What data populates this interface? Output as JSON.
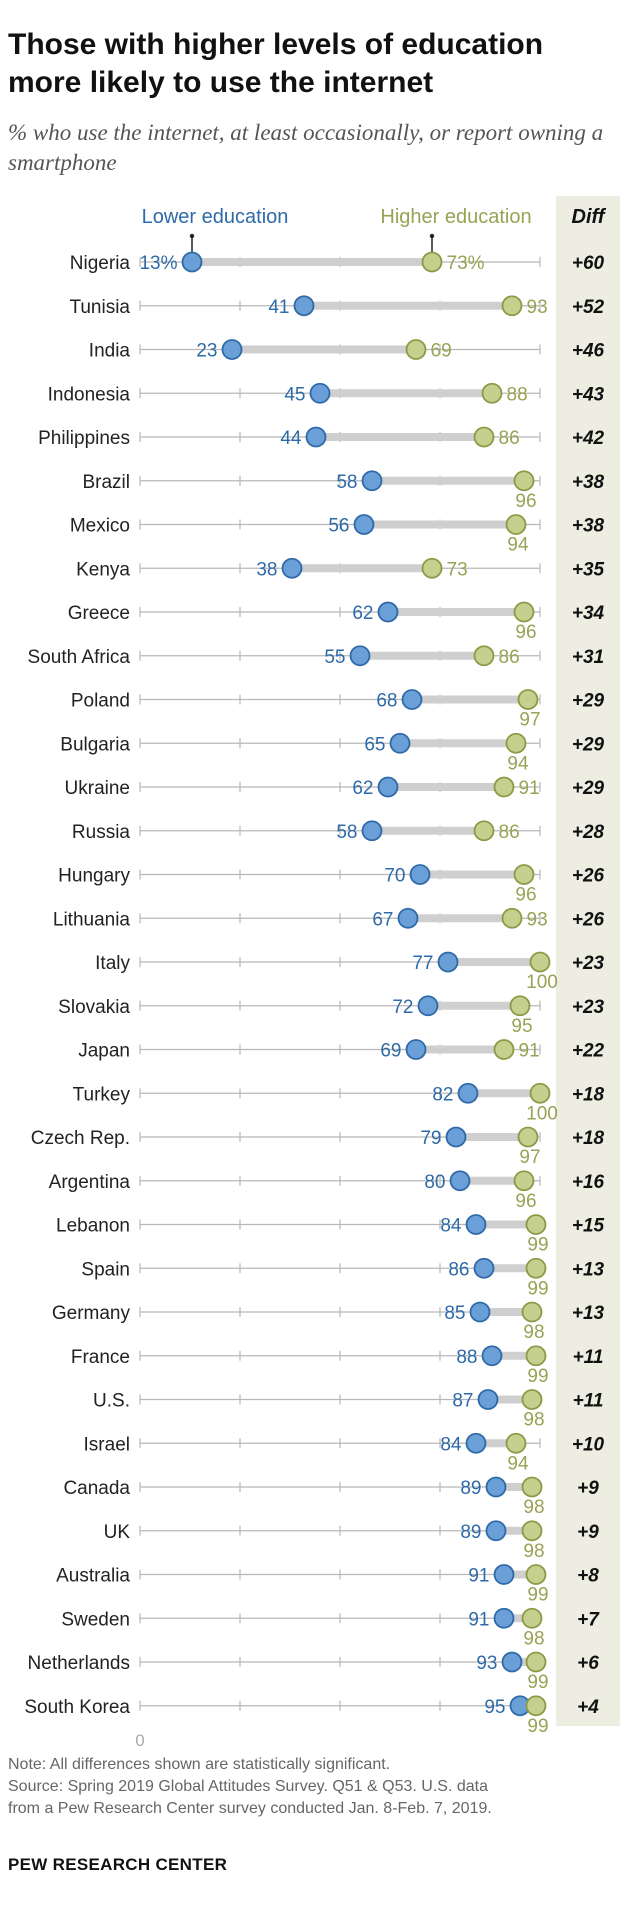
{
  "title": "Those with higher levels of education more likely to use the internet",
  "subtitle": "% who use the internet, at least occasionally, or report owning a smartphone",
  "legend": {
    "lower": "Lower education",
    "higher": "Higher education",
    "diff": "Diff"
  },
  "axis_zero_label": "0",
  "note": "Note: All differences shown are statistically significant.",
  "source_line1": "Source: Spring 2019 Global Attitudes Survey. Q51 & Q53. U.S. data",
  "source_line2": "from a Pew Research Center survey conducted Jan. 8-Feb. 7, 2019.",
  "footer": "PEW RESEARCH CENTER",
  "colors": {
    "lower": "#6a9fd8",
    "lower_stroke": "#2f6aa8",
    "lower_text": "#2f6aa8",
    "higher": "#c5cf8e",
    "higher_stroke": "#8c9a45",
    "higher_text": "#9aa255",
    "bar": "#cfcfcf",
    "axis": "#b8b8b8",
    "diff_band": "#eeede1"
  },
  "chart_data": {
    "type": "dot",
    "title": "Those with higher levels of education more likely to use the internet",
    "xlim": [
      0,
      100
    ],
    "series": [
      "Lower education",
      "Higher education"
    ],
    "rows": [
      {
        "country": "Nigeria",
        "lower": 13,
        "higher": 73,
        "lower_label": "13%",
        "higher_label": "73%",
        "diff": "+60"
      },
      {
        "country": "Tunisia",
        "lower": 41,
        "higher": 93,
        "lower_label": "41",
        "higher_label": "93",
        "diff": "+52"
      },
      {
        "country": "India",
        "lower": 23,
        "higher": 69,
        "lower_label": "23",
        "higher_label": "69",
        "diff": "+46"
      },
      {
        "country": "Indonesia",
        "lower": 45,
        "higher": 88,
        "lower_label": "45",
        "higher_label": "88",
        "diff": "+43"
      },
      {
        "country": "Philippines",
        "lower": 44,
        "higher": 86,
        "lower_label": "44",
        "higher_label": "86",
        "diff": "+42"
      },
      {
        "country": "Brazil",
        "lower": 58,
        "higher": 96,
        "lower_label": "58",
        "higher_label": "96",
        "diff": "+38"
      },
      {
        "country": "Mexico",
        "lower": 56,
        "higher": 94,
        "lower_label": "56",
        "higher_label": "94",
        "diff": "+38"
      },
      {
        "country": "Kenya",
        "lower": 38,
        "higher": 73,
        "lower_label": "38",
        "higher_label": "73",
        "diff": "+35"
      },
      {
        "country": "Greece",
        "lower": 62,
        "higher": 96,
        "lower_label": "62",
        "higher_label": "96",
        "diff": "+34"
      },
      {
        "country": "South Africa",
        "lower": 55,
        "higher": 86,
        "lower_label": "55",
        "higher_label": "86",
        "diff": "+31"
      },
      {
        "country": "Poland",
        "lower": 68,
        "higher": 97,
        "lower_label": "68",
        "higher_label": "97",
        "diff": "+29"
      },
      {
        "country": "Bulgaria",
        "lower": 65,
        "higher": 94,
        "lower_label": "65",
        "higher_label": "94",
        "diff": "+29"
      },
      {
        "country": "Ukraine",
        "lower": 62,
        "higher": 91,
        "lower_label": "62",
        "higher_label": "91",
        "diff": "+29"
      },
      {
        "country": "Russia",
        "lower": 58,
        "higher": 86,
        "lower_label": "58",
        "higher_label": "86",
        "diff": "+28"
      },
      {
        "country": "Hungary",
        "lower": 70,
        "higher": 96,
        "lower_label": "70",
        "higher_label": "96",
        "diff": "+26"
      },
      {
        "country": "Lithuania",
        "lower": 67,
        "higher": 93,
        "lower_label": "67",
        "higher_label": "93",
        "diff": "+26"
      },
      {
        "country": "Italy",
        "lower": 77,
        "higher": 100,
        "lower_label": "77",
        "higher_label": "100",
        "diff": "+23"
      },
      {
        "country": "Slovakia",
        "lower": 72,
        "higher": 95,
        "lower_label": "72",
        "higher_label": "95",
        "diff": "+23"
      },
      {
        "country": "Japan",
        "lower": 69,
        "higher": 91,
        "lower_label": "69",
        "higher_label": "91",
        "diff": "+22"
      },
      {
        "country": "Turkey",
        "lower": 82,
        "higher": 100,
        "lower_label": "82",
        "higher_label": "100",
        "diff": "+18"
      },
      {
        "country": "Czech Rep.",
        "lower": 79,
        "higher": 97,
        "lower_label": "79",
        "higher_label": "97",
        "diff": "+18"
      },
      {
        "country": "Argentina",
        "lower": 80,
        "higher": 96,
        "lower_label": "80",
        "higher_label": "96",
        "diff": "+16"
      },
      {
        "country": "Lebanon",
        "lower": 84,
        "higher": 99,
        "lower_label": "84",
        "higher_label": "99",
        "diff": "+15"
      },
      {
        "country": "Spain",
        "lower": 86,
        "higher": 99,
        "lower_label": "86",
        "higher_label": "99",
        "diff": "+13"
      },
      {
        "country": "Germany",
        "lower": 85,
        "higher": 98,
        "lower_label": "85",
        "higher_label": "98",
        "diff": "+13"
      },
      {
        "country": "France",
        "lower": 88,
        "higher": 99,
        "lower_label": "88",
        "higher_label": "99",
        "diff": "+11"
      },
      {
        "country": "U.S.",
        "lower": 87,
        "higher": 98,
        "lower_label": "87",
        "higher_label": "98",
        "diff": "+11"
      },
      {
        "country": "Israel",
        "lower": 84,
        "higher": 94,
        "lower_label": "84",
        "higher_label": "94",
        "diff": "+10"
      },
      {
        "country": "Canada",
        "lower": 89,
        "higher": 98,
        "lower_label": "89",
        "higher_label": "98",
        "diff": "+9"
      },
      {
        "country": "UK",
        "lower": 89,
        "higher": 98,
        "lower_label": "89",
        "higher_label": "98",
        "diff": "+9"
      },
      {
        "country": "Australia",
        "lower": 91,
        "higher": 99,
        "lower_label": "91",
        "higher_label": "99",
        "diff": "+8"
      },
      {
        "country": "Sweden",
        "lower": 91,
        "higher": 98,
        "lower_label": "91",
        "higher_label": "98",
        "diff": "+7"
      },
      {
        "country": "Netherlands",
        "lower": 93,
        "higher": 99,
        "lower_label": "93",
        "higher_label": "99",
        "diff": "+6"
      },
      {
        "country": "South Korea",
        "lower": 95,
        "higher": 99,
        "lower_label": "95",
        "higher_label": "99",
        "diff": "+4"
      }
    ]
  }
}
